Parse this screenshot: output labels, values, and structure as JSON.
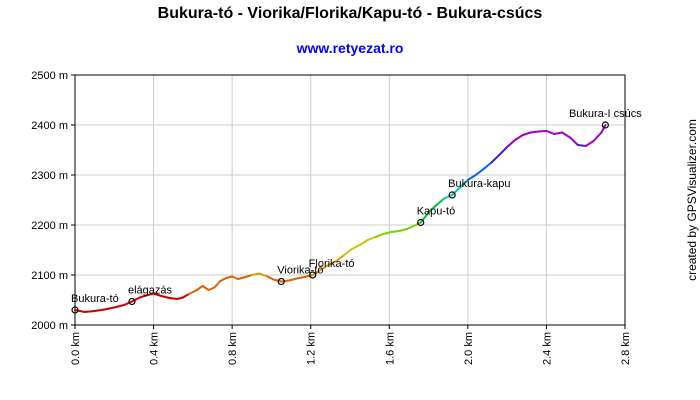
{
  "chart_data": {
    "type": "line",
    "title": "Bukura-tó - Viorika/Florika/Kapu-tó - Bukura-csúcs",
    "subtitle": "www.retyezat.ro",
    "credit": "created by GPSVisualizer.com",
    "x_unit": "km",
    "y_unit": "m",
    "xlim": [
      0,
      2.8
    ],
    "ylim": [
      2000,
      2500
    ],
    "x_ticks": [
      0.0,
      0.4,
      0.8,
      1.2,
      1.6,
      2.0,
      2.4,
      2.8
    ],
    "x_tick_labels": [
      "0.0 km",
      "0.4 km",
      "0.8 km",
      "1.2 km",
      "1.6 km",
      "2.0 km",
      "2.4 km",
      "2.8 km"
    ],
    "y_ticks": [
      2000,
      2100,
      2200,
      2300,
      2400,
      2500
    ],
    "y_tick_labels": [
      "2000 m",
      "2100 m",
      "2200 m",
      "2300 m",
      "2400 m",
      "2500 m"
    ],
    "grid": true,
    "series": [
      {
        "x": [
          0.0,
          0.05,
          0.1,
          0.15,
          0.2,
          0.25,
          0.29,
          0.33,
          0.37,
          0.4,
          0.44,
          0.48,
          0.52,
          0.55,
          0.58,
          0.62,
          0.65,
          0.68,
          0.71,
          0.74,
          0.77,
          0.8,
          0.83,
          0.86,
          0.9,
          0.94,
          0.98,
          1.01,
          1.05,
          1.09,
          1.13,
          1.17,
          1.21,
          1.25,
          1.29,
          1.33,
          1.37,
          1.41,
          1.45,
          1.49,
          1.53,
          1.57,
          1.61,
          1.65,
          1.69,
          1.73,
          1.76,
          1.8,
          1.84,
          1.88,
          1.92,
          1.96,
          2.0,
          2.04,
          2.08,
          2.12,
          2.16,
          2.2,
          2.24,
          2.28,
          2.32,
          2.36,
          2.4,
          2.44,
          2.48,
          2.52,
          2.56,
          2.6,
          2.64,
          2.68,
          2.7
        ],
        "y": [
          2030,
          2026,
          2028,
          2031,
          2035,
          2040,
          2047,
          2055,
          2060,
          2063,
          2058,
          2054,
          2052,
          2055,
          2062,
          2070,
          2078,
          2070,
          2075,
          2088,
          2094,
          2097,
          2092,
          2095,
          2100,
          2103,
          2097,
          2091,
          2087,
          2089,
          2093,
          2096,
          2100,
          2110,
          2120,
          2128,
          2140,
          2152,
          2160,
          2170,
          2176,
          2182,
          2186,
          2188,
          2192,
          2199,
          2205,
          2225,
          2240,
          2253,
          2260,
          2275,
          2290,
          2300,
          2312,
          2325,
          2340,
          2356,
          2370,
          2380,
          2385,
          2387,
          2388,
          2382,
          2385,
          2375,
          2360,
          2358,
          2368,
          2385,
          2400
        ]
      }
    ],
    "colors": [
      "#cc0000",
      "#e06000",
      "#e09a00",
      "#c8c800",
      "#7dd000",
      "#00c040",
      "#00c8c8",
      "#0060ff",
      "#4020d0",
      "#a000c0"
    ],
    "waypoints": [
      {
        "label": "Bukura-tó",
        "x": 0.0,
        "y": 2030
      },
      {
        "label": "elágazás",
        "x": 0.29,
        "y": 2047
      },
      {
        "label": "Viorika-tó",
        "x": 1.05,
        "y": 2087
      },
      {
        "label": "Florika-tó",
        "x": 1.21,
        "y": 2100
      },
      {
        "label": "Kapu-tó",
        "x": 1.76,
        "y": 2205
      },
      {
        "label": "Bukura-kapu",
        "x": 1.92,
        "y": 2260
      },
      {
        "label": "Bukura-I csúcs",
        "x": 2.7,
        "y": 2400
      }
    ]
  }
}
